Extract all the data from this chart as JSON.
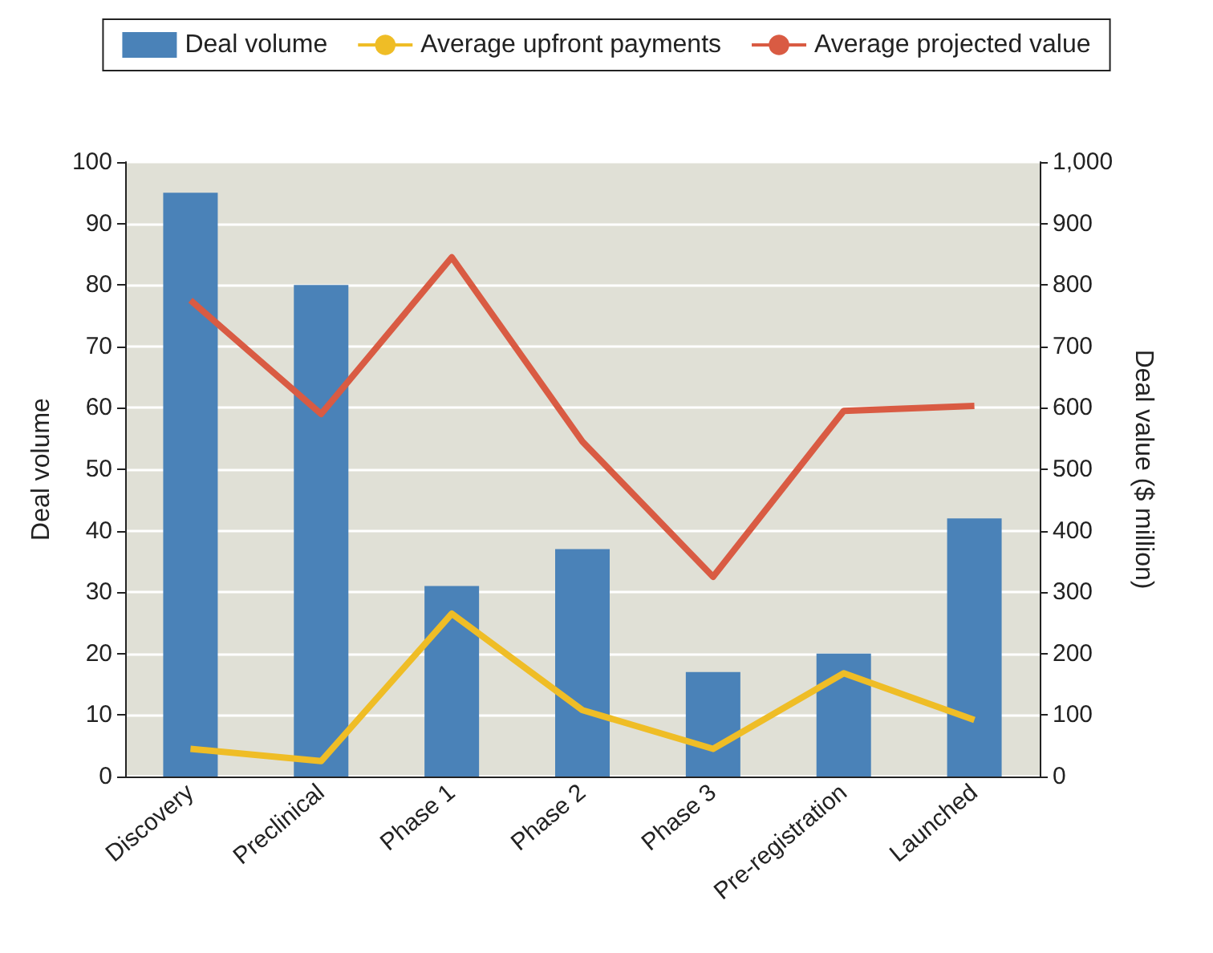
{
  "chart_data": {
    "type": "bar",
    "categories": [
      "Discovery",
      "Preclinical",
      "Phase 1",
      "Phase 2",
      "Phase 3",
      "Pre-registration",
      "Launched"
    ],
    "ylabel": "Deal volume",
    "y2label": "Deal value ($ million)",
    "series": [
      {
        "name": "Deal volume",
        "color": "#4a82b8",
        "values": [
          95,
          80,
          31,
          37,
          17,
          20,
          42
        ]
      },
      {
        "name": "Average upfront payments",
        "type": "line",
        "axis": "y2",
        "color": "#efbd26",
        "values": [
          45,
          25,
          265,
          108,
          45,
          168,
          92
        ]
      },
      {
        "name": "Average projected value",
        "type": "line",
        "axis": "y2",
        "color": "#d95b43",
        "values": [
          775,
          590,
          845,
          545,
          325,
          595,
          603
        ]
      }
    ],
    "ylim": [
      0,
      100
    ],
    "yticks": [
      0,
      10,
      20,
      30,
      40,
      50,
      60,
      70,
      80,
      90,
      100
    ],
    "y2lim": [
      0,
      1000
    ],
    "y2ticks": [
      0,
      100,
      200,
      300,
      400,
      500,
      600,
      700,
      800,
      900,
      {
        "value": 1000,
        "label": "1,000"
      }
    ],
    "grid": "y",
    "legend": "top",
    "marker": "none"
  }
}
